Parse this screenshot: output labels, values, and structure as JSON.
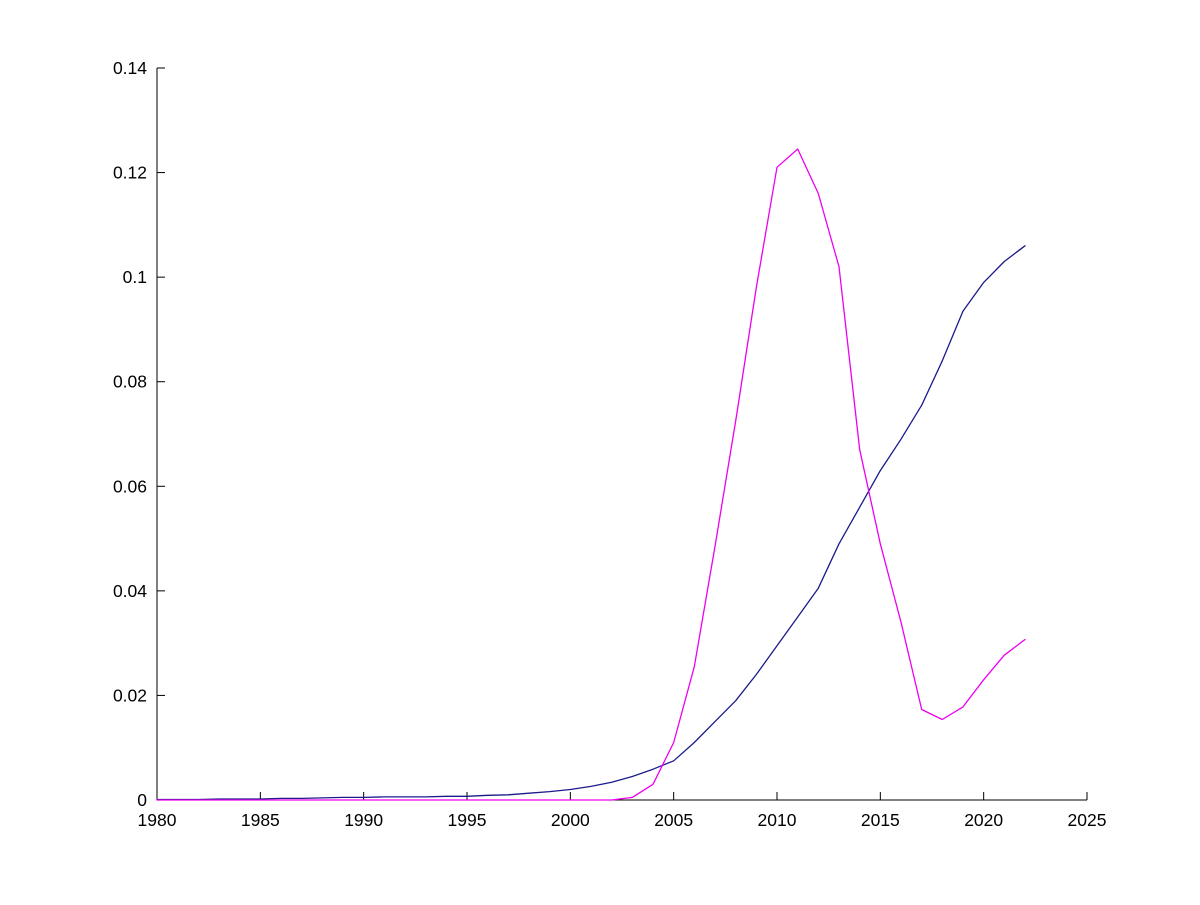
{
  "figure": {
    "background": "#ffffff",
    "title": ""
  },
  "chart_data": {
    "type": "line",
    "title": "",
    "xlabel": "",
    "ylabel": "",
    "xlim": [
      1980,
      2025
    ],
    "ylim": [
      0,
      0.14
    ],
    "x_ticks": [
      1980,
      1985,
      1990,
      1995,
      2000,
      2005,
      2010,
      2015,
      2020,
      2025
    ],
    "x_tick_labels": [
      "1980",
      "1985",
      "1990",
      "1995",
      "2000",
      "2005",
      "2010",
      "2015",
      "2020",
      "2025"
    ],
    "y_ticks": [
      0,
      0.02,
      0.04,
      0.06,
      0.08,
      0.1,
      0.12,
      0.14
    ],
    "y_tick_labels": [
      "0",
      "0.02",
      "0.04",
      "0.06",
      "0.08",
      "0.1",
      "0.12",
      "0.14"
    ],
    "grid": false,
    "legend_position": "none",
    "axis_color": "#000000",
    "axis_style": "L-shaped, ticks pointing inward",
    "x": [
      1980,
      1981,
      1982,
      1983,
      1984,
      1985,
      1986,
      1987,
      1988,
      1989,
      1990,
      1991,
      1992,
      1993,
      1994,
      1995,
      1996,
      1997,
      1998,
      1999,
      2000,
      2001,
      2002,
      2003,
      2004,
      2005,
      2006,
      2007,
      2008,
      2009,
      2010,
      2011,
      2012,
      2013,
      2014,
      2015,
      2016,
      2017,
      2018,
      2019,
      2020,
      2021,
      2022
    ],
    "series": [
      {
        "name": "blue-sigmoid-line",
        "color": "#1a1a8c",
        "values": [
          0.0001,
          0.0001,
          0.0001,
          0.0002,
          0.0002,
          0.0002,
          0.0003,
          0.0003,
          0.0004,
          0.0005,
          0.0005,
          0.0006,
          0.0006,
          0.0006,
          0.0007,
          0.0007,
          0.0009,
          0.001,
          0.0013,
          0.0016,
          0.002,
          0.0026,
          0.0034,
          0.0045,
          0.0059,
          0.0075,
          0.011,
          0.015,
          0.019,
          0.024,
          0.0295,
          0.035,
          0.0405,
          0.049,
          0.056,
          0.063,
          0.069,
          0.0755,
          0.084,
          0.0935,
          0.099,
          0.103,
          0.106
        ]
      },
      {
        "name": "magenta-peak-line",
        "color": "#ee00ee",
        "values": [
          0,
          0,
          0,
          0,
          0,
          0,
          0,
          0,
          0,
          0,
          0,
          0,
          0,
          0,
          0,
          0,
          0,
          0,
          0,
          0,
          0,
          0,
          0,
          0.0005,
          0.003,
          0.011,
          0.0255,
          0.0485,
          0.0725,
          0.098,
          0.121,
          0.1245,
          0.116,
          0.102,
          0.067,
          0.049,
          0.034,
          0.0173,
          0.0154,
          0.0178,
          0.023,
          0.0277,
          0.0307
        ]
      }
    ]
  }
}
